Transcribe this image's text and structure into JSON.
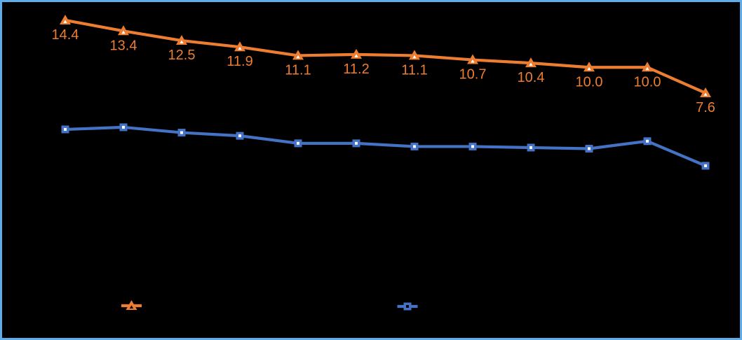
{
  "frame": {
    "border_color": "#5FACEA",
    "background_color": "#000000"
  },
  "chart_data": {
    "type": "line",
    "title": "",
    "xlabel": "",
    "ylabel": "",
    "point_count": 12,
    "axes": {
      "x_tick_labels_visible": false,
      "y_tick_labels_visible": false,
      "axis_lines_visible": false,
      "gridlines_visible": false
    },
    "series": [
      {
        "id": "orange",
        "color": "#ED7D31",
        "marker": "triangle",
        "marker_fill": "#FFFFFF",
        "values": [
          14.4,
          13.4,
          12.5,
          11.9,
          11.1,
          11.2,
          11.1,
          10.7,
          10.4,
          10.0,
          10.0,
          7.6
        ],
        "data_labels": [
          "14.4",
          "13.4",
          "12.5",
          "11.9",
          "11.1",
          "11.2",
          "11.1",
          "10.7",
          "10.4",
          "10.0",
          "10.0",
          "7.6"
        ],
        "data_labels_visible": true
      },
      {
        "id": "blue",
        "color": "#4472C4",
        "marker": "square",
        "marker_fill": "#FFFFFF",
        "values": [
          4.2,
          4.4,
          3.9,
          3.6,
          2.9,
          2.9,
          2.6,
          2.6,
          2.5,
          2.4,
          3.1,
          0.8
        ],
        "values_estimated_from_pixels": true,
        "data_labels_visible": false
      }
    ],
    "legend": {
      "position": "bottom-center",
      "labels_visible": false,
      "items": [
        {
          "series_id": "orange"
        },
        {
          "series_id": "blue"
        }
      ]
    }
  }
}
